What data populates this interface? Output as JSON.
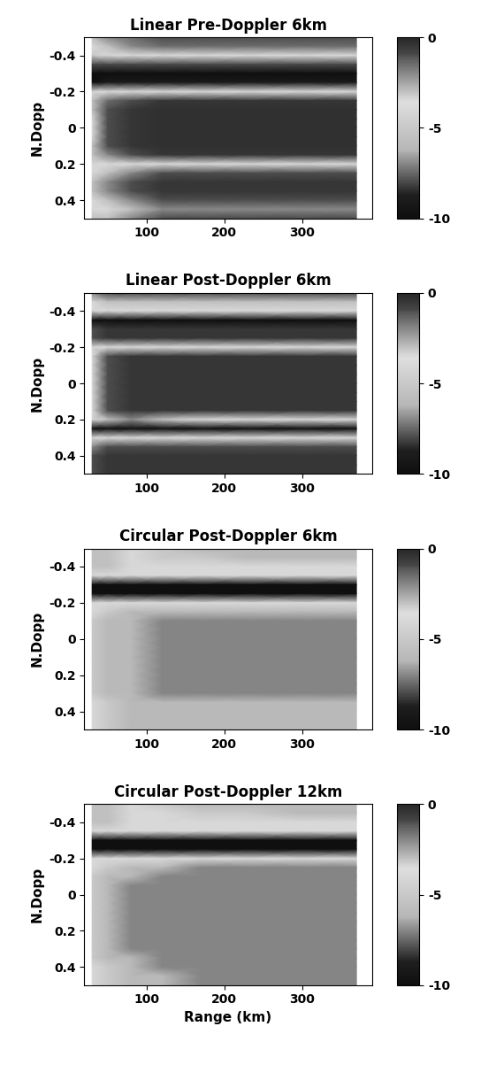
{
  "chart_data": [
    {
      "type": "heatmap",
      "title": "Linear Pre-Doppler 6km",
      "ylabel": "N.Dopp",
      "x": [
        30,
        50,
        80,
        120,
        170,
        230,
        300,
        370
      ],
      "y": [
        -0.5,
        -0.45,
        -0.4,
        -0.35,
        -0.3,
        -0.25,
        -0.2,
        -0.15,
        -0.1,
        -0.05,
        0,
        0.05,
        0.1,
        0.15,
        0.2,
        0.25,
        0.3,
        0.35,
        0.4,
        0.45,
        0.5
      ],
      "cells": [
        [
          -3,
          -2,
          -1.5,
          -1,
          -1,
          -1,
          -1,
          -1
        ],
        [
          -4,
          -3,
          -2,
          -1.5,
          -1.5,
          -1.5,
          -1.5,
          -1.5
        ],
        [
          -5,
          -4,
          -4,
          -4,
          -4,
          -4,
          -4,
          -4
        ],
        [
          -8,
          -8,
          -8,
          -8,
          -8,
          -8,
          -8,
          -8
        ],
        [
          -10,
          -10,
          -10,
          -10,
          -10,
          -10,
          -10,
          -10
        ],
        [
          -10,
          -9,
          -9,
          -9,
          -9,
          -9,
          -9,
          -9
        ],
        [
          -4,
          -4,
          -4,
          -4,
          -4,
          -4,
          -4,
          -4
        ],
        [
          -3,
          -1.5,
          -1,
          -0.5,
          -0.5,
          -0.5,
          -0.5,
          -0.5
        ],
        [
          -3,
          -1,
          -0.5,
          -0.3,
          -0.3,
          -0.3,
          -0.3,
          -0.3
        ],
        [
          -4,
          -1,
          -0.5,
          -0.3,
          -0.3,
          -0.3,
          -0.3,
          -0.3
        ],
        [
          -4,
          -1,
          -0.5,
          -0.3,
          -0.3,
          -0.3,
          -0.3,
          -0.3
        ],
        [
          -4,
          -1,
          -0.5,
          -0.3,
          -0.3,
          -0.3,
          -0.3,
          -0.3
        ],
        [
          -3,
          -1,
          -0.5,
          -0.3,
          -0.3,
          -0.3,
          -0.3,
          -0.3
        ],
        [
          -3,
          -2,
          -1,
          -0.5,
          -0.5,
          -0.5,
          -0.5,
          -0.5
        ],
        [
          -4,
          -4,
          -4,
          -4,
          -4,
          -4,
          -4,
          -4
        ],
        [
          -4,
          -3,
          -2,
          -1,
          -1,
          -1,
          -1,
          -1
        ],
        [
          -3,
          -2,
          -1,
          -0.5,
          -0.5,
          -0.5,
          -0.5,
          -0.5
        ],
        [
          -3,
          -2,
          -1,
          -0.5,
          -0.5,
          -0.5,
          -0.5,
          -0.5
        ],
        [
          -4,
          -3,
          -2,
          -1,
          -1,
          -1,
          -1,
          -1
        ],
        [
          -4,
          -4,
          -3,
          -2,
          -2,
          -2,
          -2,
          -2
        ],
        [
          -3,
          -3,
          -2,
          -1,
          -1,
          -1,
          -1,
          -1
        ]
      ],
      "xlim": [
        20,
        390
      ],
      "ylim": [
        0.5,
        -0.5
      ],
      "xticks": [
        100,
        200,
        300
      ],
      "yticks": [
        -0.4,
        -0.2,
        0,
        0.2,
        0.4
      ],
      "colorbar_range": [
        -10,
        0
      ],
      "colorbar_ticks": [
        0,
        -5,
        -10
      ]
    },
    {
      "type": "heatmap",
      "title": "Linear Post-Doppler 6km",
      "ylabel": "N.Dopp",
      "x": [
        30,
        50,
        80,
        120,
        170,
        230,
        300,
        370
      ],
      "y": [
        -0.5,
        -0.45,
        -0.4,
        -0.35,
        -0.3,
        -0.25,
        -0.2,
        -0.15,
        -0.1,
        -0.05,
        0,
        0.05,
        0.1,
        0.15,
        0.2,
        0.25,
        0.3,
        0.35,
        0.4,
        0.45,
        0.5
      ],
      "cells": [
        [
          -2,
          -1,
          -1,
          -1,
          -1,
          -1,
          -1,
          -1
        ],
        [
          -4,
          -3,
          -3,
          -3,
          -3,
          -3,
          -3,
          -3
        ],
        [
          -4,
          -4,
          -4,
          -4,
          -4,
          -4,
          -4,
          -4
        ],
        [
          -10,
          -10,
          -10,
          -10,
          -10,
          -10,
          -10,
          -10
        ],
        [
          -1,
          -0.5,
          -0.5,
          -0.5,
          -0.5,
          -0.5,
          -0.5,
          -0.5
        ],
        [
          -1,
          -0.5,
          -0.5,
          -0.5,
          -0.5,
          -0.5,
          -0.5,
          -0.5
        ],
        [
          -4,
          -4,
          -4,
          -4,
          -4,
          -4,
          -4,
          -4
        ],
        [
          -4,
          -1,
          -0.5,
          -0.5,
          -0.5,
          -0.5,
          -0.5,
          -0.5
        ],
        [
          -4,
          -1,
          -0.5,
          -0.5,
          -0.5,
          -0.5,
          -0.5,
          -0.5
        ],
        [
          -4,
          -1,
          -0.5,
          -0.5,
          -0.5,
          -0.5,
          -0.5,
          -0.5
        ],
        [
          -4,
          -1,
          -0.5,
          -0.5,
          -0.5,
          -0.5,
          -0.5,
          -0.5
        ],
        [
          -4,
          -1,
          -0.5,
          -0.5,
          -0.5,
          -0.5,
          -0.5,
          -0.5
        ],
        [
          -4,
          -1,
          -0.5,
          -0.5,
          -0.5,
          -0.5,
          -0.5,
          -0.5
        ],
        [
          -4,
          -1,
          -0.5,
          -0.5,
          -0.5,
          -0.5,
          -0.5,
          -0.5
        ],
        [
          -4,
          -3,
          -2,
          -3,
          -4,
          -4,
          -4,
          -4
        ],
        [
          -10,
          -10,
          -10,
          -10,
          -10,
          -10,
          -10,
          -10
        ],
        [
          -4,
          -4,
          -4,
          -4,
          -4,
          -4,
          -4,
          -4
        ],
        [
          -2,
          -1,
          -1,
          -1,
          -1,
          -1,
          -1,
          -1
        ],
        [
          -1,
          -0.5,
          -0.5,
          -0.5,
          -0.5,
          -0.5,
          -0.5,
          -0.5
        ],
        [
          -1,
          -0.5,
          -0.5,
          -0.5,
          -0.5,
          -0.5,
          -0.5,
          -0.5
        ],
        [
          -1,
          -0.5,
          -0.5,
          -0.5,
          -0.5,
          -0.5,
          -0.5,
          -0.5
        ]
      ],
      "xlim": [
        20,
        390
      ],
      "ylim": [
        0.5,
        -0.5
      ],
      "xticks": [
        100,
        200,
        300
      ],
      "yticks": [
        -0.4,
        -0.2,
        0,
        0.2,
        0.4
      ],
      "colorbar_range": [
        -10,
        0
      ],
      "colorbar_ticks": [
        0,
        -5,
        -10
      ]
    },
    {
      "type": "heatmap",
      "title": "Circular Post-Doppler 6km",
      "ylabel": "N.Dopp",
      "x": [
        30,
        50,
        80,
        120,
        170,
        230,
        300,
        370
      ],
      "y": [
        -0.5,
        -0.45,
        -0.4,
        -0.35,
        -0.3,
        -0.25,
        -0.2,
        -0.15,
        -0.1,
        -0.05,
        0,
        0.05,
        0.1,
        0.15,
        0.2,
        0.25,
        0.3,
        0.35,
        0.4,
        0.45,
        0.5
      ],
      "cells": [
        [
          -3,
          -3,
          -4,
          -5,
          -6,
          -6,
          -6,
          -6
        ],
        [
          -3,
          -3,
          -4,
          -5,
          -5,
          -6,
          -6,
          -6
        ],
        [
          -3,
          -3,
          -4,
          -4,
          -4,
          -4,
          -4,
          -4
        ],
        [
          -4,
          -4,
          -4,
          -4,
          -4,
          -4,
          -4,
          -4
        ],
        [
          -10,
          -10,
          -10,
          -10,
          -10,
          -10,
          -10,
          -10
        ],
        [
          -10,
          -10,
          -10,
          -10,
          -10,
          -10,
          -10,
          -10
        ],
        [
          -4,
          -4,
          -4,
          -4,
          -4,
          -4,
          -4,
          -4
        ],
        [
          -4,
          -5,
          -6,
          -6,
          -6,
          -6,
          -6,
          -6
        ],
        [
          -5,
          -6,
          -6,
          -7,
          -7,
          -7,
          -7,
          -7
        ],
        [
          -5,
          -6,
          -6,
          -7,
          -7,
          -7,
          -7,
          -7
        ],
        [
          -5,
          -6,
          -6,
          -7,
          -7,
          -7,
          -7,
          -7
        ],
        [
          -5,
          -6,
          -6,
          -7,
          -7,
          -7,
          -7,
          -7
        ],
        [
          -5,
          -6,
          -6,
          -7,
          -7,
          -7,
          -7,
          -7
        ],
        [
          -5,
          -6,
          -6,
          -7,
          -7,
          -7,
          -7,
          -7
        ],
        [
          -5,
          -6,
          -6,
          -7,
          -7,
          -7,
          -7,
          -7
        ],
        [
          -5,
          -6,
          -6,
          -7,
          -7,
          -7,
          -7,
          -7
        ],
        [
          -5,
          -6,
          -6,
          -7,
          -7,
          -7,
          -7,
          -7
        ],
        [
          -4,
          -5,
          -6,
          -6,
          -6,
          -6,
          -6,
          -6
        ],
        [
          -4,
          -5,
          -6,
          -6,
          -6,
          -6,
          -6,
          -6
        ],
        [
          -4,
          -5,
          -6,
          -6,
          -6,
          -6,
          -6,
          -6
        ],
        [
          -4,
          -5,
          -6,
          -6,
          -6,
          -6,
          -6,
          -6
        ]
      ],
      "xlim": [
        20,
        390
      ],
      "ylim": [
        0.5,
        -0.5
      ],
      "xticks": [
        100,
        200,
        300
      ],
      "yticks": [
        -0.4,
        -0.2,
        0,
        0.2,
        0.4
      ],
      "colorbar_range": [
        -10,
        0
      ],
      "colorbar_ticks": [
        0,
        -5,
        -10
      ]
    },
    {
      "type": "heatmap",
      "title": "Circular Post-Doppler 12km",
      "ylabel": "N.Dopp",
      "xlabel": "Range (km)",
      "x": [
        30,
        50,
        80,
        120,
        170,
        230,
        300,
        370
      ],
      "y": [
        -0.5,
        -0.45,
        -0.4,
        -0.35,
        -0.3,
        -0.25,
        -0.2,
        -0.15,
        -0.1,
        -0.05,
        0,
        0.05,
        0.1,
        0.15,
        0.2,
        0.25,
        0.3,
        0.35,
        0.4,
        0.45,
        0.5
      ],
      "cells": [
        [
          -3,
          -3,
          -4,
          -5,
          -6,
          -6,
          -6,
          -6
        ],
        [
          -3,
          -3,
          -4,
          -4,
          -5,
          -5,
          -6,
          -6
        ],
        [
          -3,
          -3,
          -4,
          -4,
          -4,
          -4,
          -4,
          -4
        ],
        [
          -4,
          -4,
          -4,
          -4,
          -4,
          -4,
          -4,
          -4
        ],
        [
          -10,
          -10,
          -10,
          -10,
          -10,
          -10,
          -10,
          -10
        ],
        [
          -10,
          -10,
          -10,
          -10,
          -10,
          -10,
          -10,
          -10
        ],
        [
          -4,
          -4,
          -4,
          -4,
          -4,
          -4,
          -4,
          -4
        ],
        [
          -4,
          -5,
          -6,
          -6,
          -7,
          -7,
          -7,
          -7
        ],
        [
          -5,
          -6,
          -6,
          -7,
          -7,
          -7,
          -7,
          -7
        ],
        [
          -5,
          -6,
          -7,
          -7,
          -7,
          -7,
          -7,
          -7
        ],
        [
          -5,
          -6,
          -7,
          -7,
          -7,
          -7,
          -7,
          -7
        ],
        [
          -5,
          -6,
          -7,
          -7,
          -7,
          -7,
          -7,
          -7
        ],
        [
          -5,
          -6,
          -7,
          -7,
          -7,
          -7,
          -7,
          -7
        ],
        [
          -5,
          -6,
          -7,
          -7,
          -7,
          -7,
          -7,
          -7
        ],
        [
          -5,
          -6,
          -7,
          -7,
          -7,
          -7,
          -7,
          -7
        ],
        [
          -5,
          -6,
          -7,
          -7,
          -7,
          -7,
          -7,
          -7
        ],
        [
          -5,
          -6,
          -7,
          -7,
          -7,
          -7,
          -7,
          -7
        ],
        [
          -5,
          -6,
          -6,
          -7,
          -7,
          -7,
          -7,
          -7
        ],
        [
          -4,
          -5,
          -6,
          -7,
          -7,
          -7,
          -7,
          -7
        ],
        [
          -4,
          -5,
          -6,
          -6,
          -7,
          -7,
          -7,
          -7
        ],
        [
          -4,
          -5,
          -6,
          -6,
          -7,
          -7,
          -7,
          -7
        ]
      ],
      "xlim": [
        20,
        390
      ],
      "ylim": [
        0.5,
        -0.5
      ],
      "xticks": [
        100,
        200,
        300
      ],
      "yticks": [
        -0.4,
        -0.2,
        0,
        0.2,
        0.4
      ],
      "colorbar_range": [
        -10,
        0
      ],
      "colorbar_ticks": [
        0,
        -5,
        -10
      ]
    }
  ]
}
